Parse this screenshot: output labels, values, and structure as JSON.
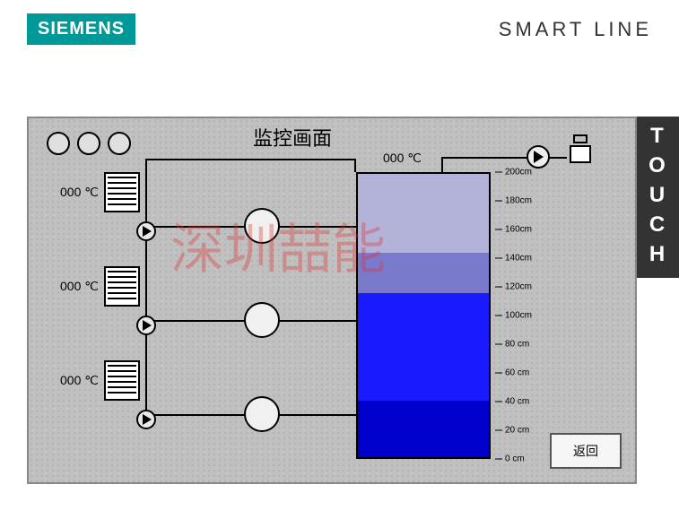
{
  "header": {
    "logo_text": "SIEMENS",
    "product_line": "SMART LINE",
    "side_label": "TOUCH"
  },
  "panel": {
    "title": "监控画面",
    "back_button": "返回",
    "tank_temp": "000 ℃",
    "heaters": [
      {
        "temp": "000 ℃"
      },
      {
        "temp": "000 ℃"
      },
      {
        "temp": "000 ℃"
      }
    ],
    "tank": {
      "bands": [
        {
          "top_pct": 0,
          "height_pct": 28,
          "color": "#b3b3d9"
        },
        {
          "top_pct": 28,
          "height_pct": 14,
          "color": "#7a7acc"
        },
        {
          "top_pct": 42,
          "height_pct": 38,
          "color": "#1a1aff"
        },
        {
          "top_pct": 80,
          "height_pct": 20,
          "color": "#0000cc"
        }
      ],
      "scale_unit": "cm",
      "scale_max": 200,
      "scale_min": 0,
      "scale_step": 20,
      "ticks": [
        "200cm",
        "180cm",
        "160cm",
        "140cm",
        "120cm",
        "100cm",
        "80 cm",
        "60 cm",
        "40 cm",
        "20 cm",
        "0 cm"
      ]
    },
    "colors": {
      "panel_bg": "#c0c0c0",
      "logo_bg": "#009999",
      "border": "#000000"
    }
  },
  "watermark": "深圳喆能"
}
